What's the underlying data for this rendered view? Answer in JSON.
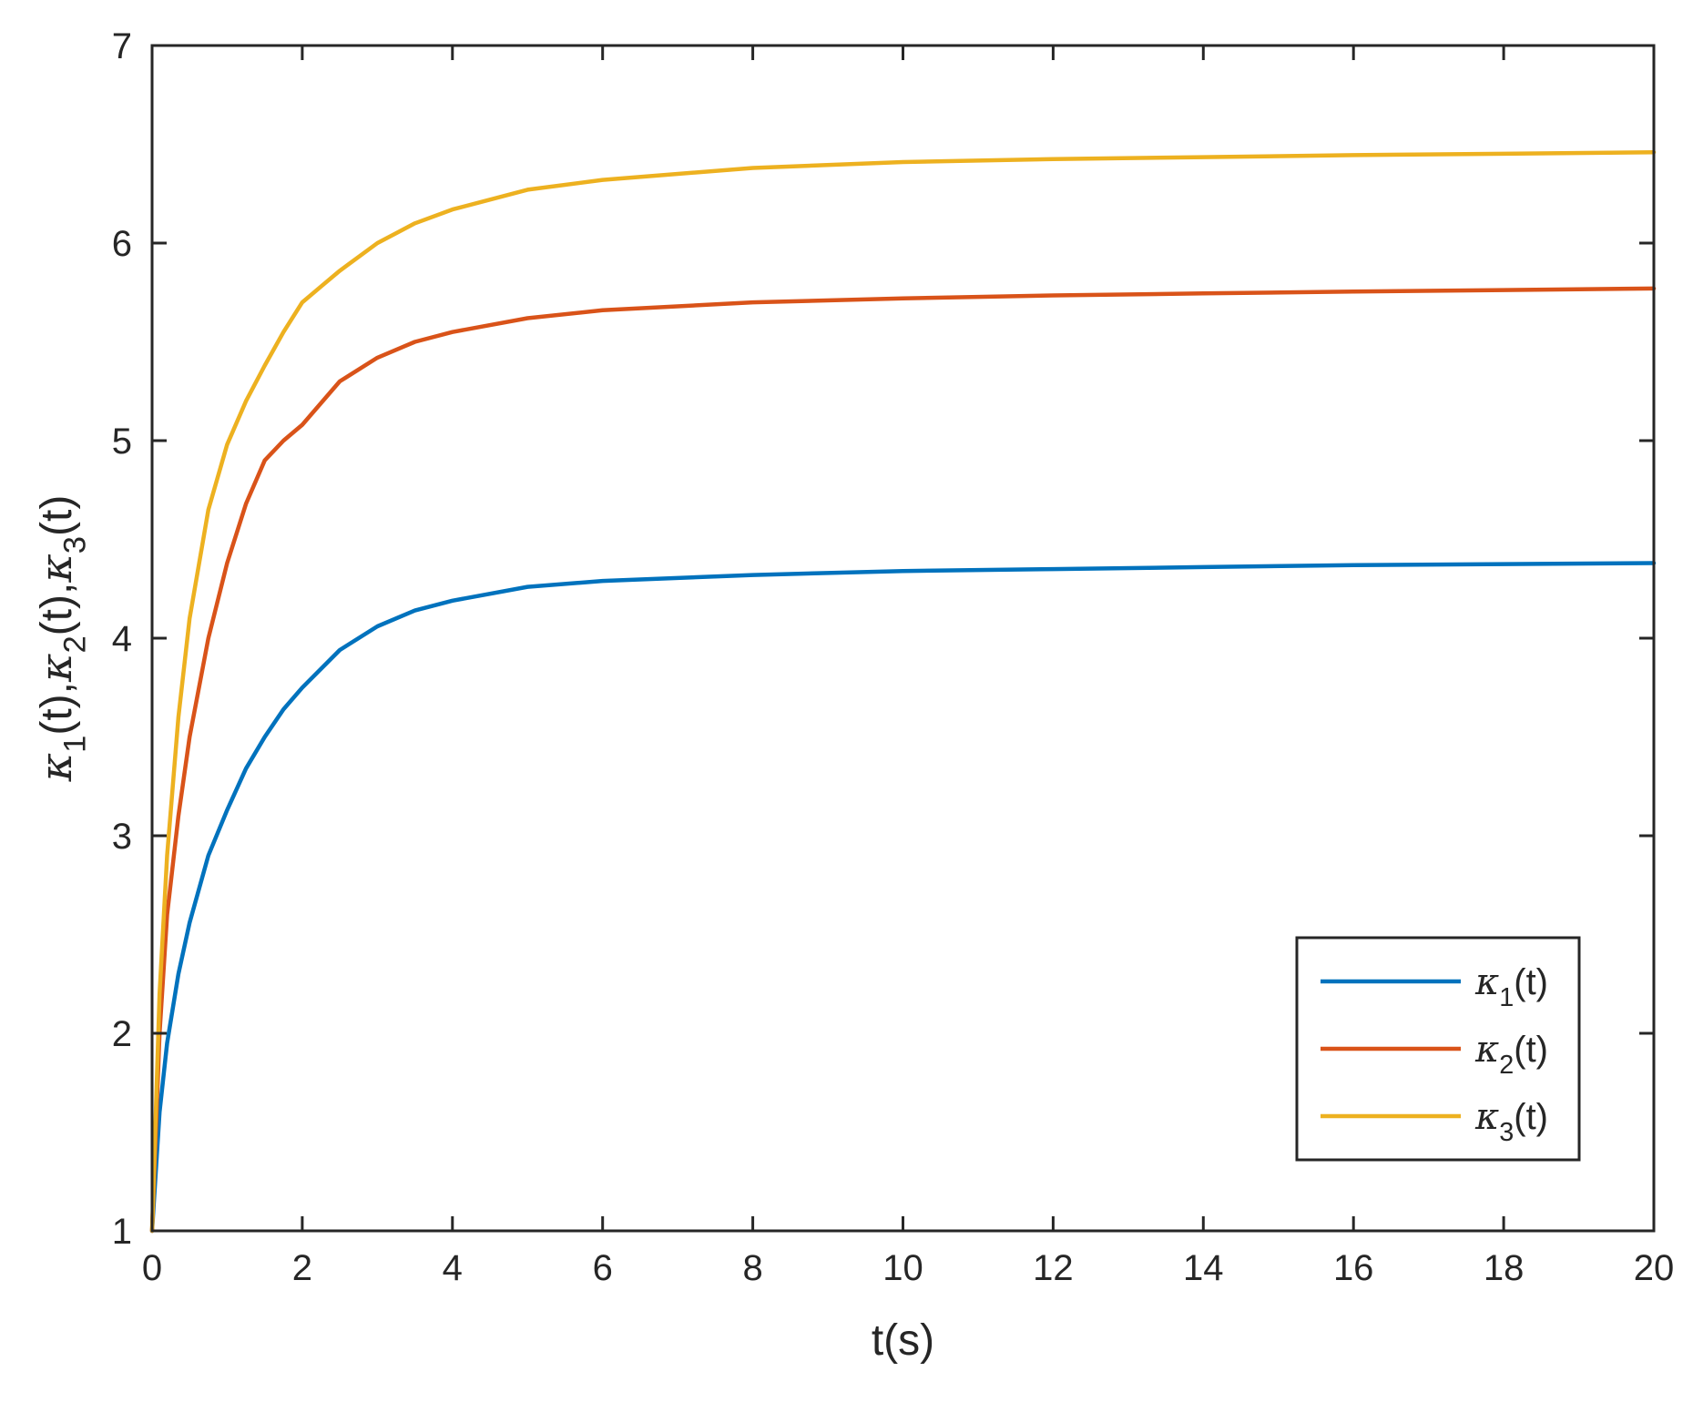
{
  "chart_data": {
    "type": "line",
    "title": "",
    "xlabel": "t(s)",
    "ylabel": {
      "parts": [
        {
          "base": "κ",
          "sub": "1",
          "tail": "(t),"
        },
        {
          "base": "κ",
          "sub": "2",
          "tail": "(t),"
        },
        {
          "base": "κ",
          "sub": "3",
          "tail": "(t)"
        }
      ]
    },
    "xlim": [
      0,
      20
    ],
    "ylim": [
      1,
      7
    ],
    "xticks": [
      0,
      2,
      4,
      6,
      8,
      10,
      12,
      14,
      16,
      18,
      20
    ],
    "yticks": [
      1,
      2,
      3,
      4,
      5,
      6,
      7
    ],
    "grid": false,
    "legend_position": "bottom-right",
    "series": [
      {
        "name": {
          "base": "κ",
          "sub": "1",
          "tail": "(t)"
        },
        "color": "#0072BD",
        "x": [
          0,
          0.1,
          0.2,
          0.35,
          0.5,
          0.75,
          1.0,
          1.25,
          1.5,
          1.75,
          2.0,
          2.5,
          3.0,
          3.5,
          4.0,
          5.0,
          6.0,
          8.0,
          10.0,
          12.0,
          14.0,
          16.0,
          18.0,
          20.0
        ],
        "y": [
          1.0,
          1.6,
          1.95,
          2.3,
          2.56,
          2.9,
          3.13,
          3.34,
          3.5,
          3.64,
          3.75,
          3.94,
          4.06,
          4.14,
          4.19,
          4.26,
          4.29,
          4.32,
          4.34,
          4.35,
          4.36,
          4.37,
          4.375,
          4.38
        ]
      },
      {
        "name": {
          "base": "κ",
          "sub": "2",
          "tail": "(t)"
        },
        "color": "#D95319",
        "x": [
          0,
          0.1,
          0.2,
          0.35,
          0.5,
          0.75,
          1.0,
          1.25,
          1.5,
          1.75,
          2.0,
          2.5,
          3.0,
          3.5,
          4.0,
          5.0,
          6.0,
          8.0,
          10.0,
          12.0,
          14.0,
          16.0,
          18.0,
          20.0
        ],
        "y": [
          1.0,
          2.0,
          2.6,
          3.1,
          3.5,
          4.0,
          4.38,
          4.68,
          4.9,
          5.0,
          5.08,
          5.3,
          5.42,
          5.5,
          5.55,
          5.62,
          5.66,
          5.7,
          5.72,
          5.735,
          5.745,
          5.755,
          5.762,
          5.77
        ]
      },
      {
        "name": {
          "base": "κ",
          "sub": "3",
          "tail": "(t)"
        },
        "color": "#EDB120",
        "x": [
          0,
          0.1,
          0.2,
          0.35,
          0.5,
          0.75,
          1.0,
          1.25,
          1.5,
          1.75,
          2.0,
          2.25,
          2.5,
          3.0,
          3.5,
          4.0,
          5.0,
          6.0,
          8.0,
          10.0,
          12.0,
          14.0,
          16.0,
          18.0,
          20.0
        ],
        "y": [
          1.0,
          2.2,
          2.9,
          3.6,
          4.1,
          4.65,
          4.98,
          5.2,
          5.38,
          5.55,
          5.7,
          5.78,
          5.86,
          6.0,
          6.1,
          6.17,
          6.27,
          6.32,
          6.38,
          6.41,
          6.425,
          6.435,
          6.445,
          6.452,
          6.46
        ]
      }
    ]
  }
}
